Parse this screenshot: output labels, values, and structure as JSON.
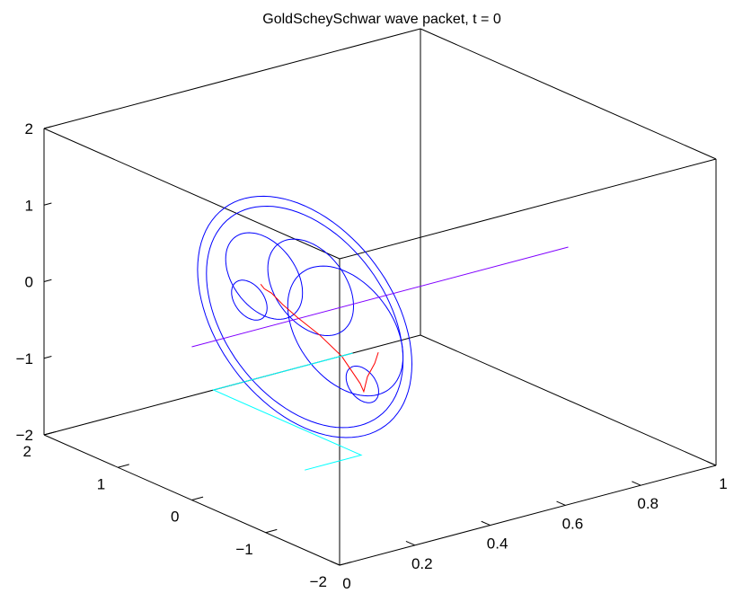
{
  "chart_data": {
    "type": "line3d",
    "title": "GoldScheySchwar wave packet, t = 0",
    "xlabel": "",
    "ylabel": "",
    "zlabel": "",
    "grid": false,
    "axes": {
      "x": {
        "range": [
          0,
          1
        ],
        "ticks": [
          0,
          0.2,
          0.4,
          0.6,
          0.8,
          1
        ],
        "tick_labels": [
          "0",
          "0.2",
          "0.4",
          "0.6",
          "0.8",
          "1"
        ]
      },
      "y": {
        "range": [
          -2,
          2
        ],
        "ticks": [
          -2,
          -1,
          0,
          1,
          2
        ],
        "tick_labels": [
          "−2",
          "−1",
          "0",
          "1",
          "2"
        ]
      },
      "z": {
        "range": [
          -2,
          2
        ],
        "ticks": [
          -2,
          -1,
          0,
          1,
          2
        ],
        "tick_labels": [
          "−2",
          "−1",
          "0",
          "1",
          "2"
        ]
      }
    },
    "colors": {
      "blue": "#0000ff",
      "red": "#ff0000",
      "cyan": "#00ffff",
      "purple": "#8000ff",
      "box": "#000000"
    },
    "series": [
      {
        "color": "blue",
        "style": "rings",
        "rings": [
          {
            "x": 0.3,
            "y0": 0.0,
            "z0": 0.0,
            "r": 1.45
          },
          {
            "x": 0.3,
            "y0": 0.0,
            "z0": 0.0,
            "r": 1.33
          },
          {
            "x": 0.3,
            "y0": -0.55,
            "z0": 0.05,
            "r": 0.78
          },
          {
            "x": 0.3,
            "y0": -0.08,
            "z0": 0.42,
            "r": 0.58
          },
          {
            "x": 0.3,
            "y0": 0.55,
            "z0": 0.3,
            "r": 0.52
          },
          {
            "x": 0.3,
            "y0": 0.75,
            "z0": -0.1,
            "r": 0.24
          },
          {
            "x": 0.3,
            "y0": -0.78,
            "z0": -0.55,
            "r": 0.22
          }
        ]
      },
      {
        "color": "purple",
        "style": "axis-line",
        "points": [
          [
            0.0,
            0.0,
            0.0
          ],
          [
            1.0,
            0.0,
            0.0
          ]
        ]
      },
      {
        "color": "red",
        "style": "curve",
        "points": [
          [
            0.26,
            -1.2,
            0.1
          ],
          [
            0.27,
            -1.1,
            -0.1
          ],
          [
            0.28,
            -0.95,
            -0.35
          ],
          [
            0.29,
            -0.85,
            -0.6
          ],
          [
            0.3,
            -0.75,
            -0.55
          ],
          [
            0.3,
            -0.5,
            -0.3
          ],
          [
            0.3,
            -0.2,
            -0.15
          ],
          [
            0.3,
            0.1,
            -0.05
          ],
          [
            0.31,
            0.35,
            0.0
          ],
          [
            0.32,
            0.55,
            0.05
          ],
          [
            0.33,
            0.7,
            0.03
          ],
          [
            0.35,
            0.85,
            0.0
          ]
        ]
      },
      {
        "color": "cyan",
        "style": "projection",
        "points": [
          [
            0.3,
            0.0,
            -2.0
          ],
          [
            0.45,
            0.0,
            -2.0
          ],
          [
            0.45,
            2.0,
            -2.0
          ],
          [
            0.82,
            2.0,
            -2.0
          ]
        ]
      }
    ]
  }
}
